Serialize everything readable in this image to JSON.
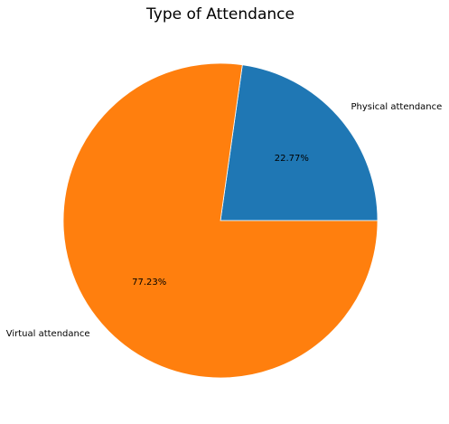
{
  "chart_data": {
    "type": "pie",
    "title": "Type of Attendance",
    "slices": [
      {
        "label": "Physical attendance",
        "value": 22.77,
        "pct_label": "22.77%",
        "color": "#1f77b4"
      },
      {
        "label": "Virtual attendance",
        "value": 77.23,
        "pct_label": "77.23%",
        "color": "#ff7f0e"
      }
    ],
    "start_angle_deg": 0,
    "direction": "counterclockwise"
  }
}
